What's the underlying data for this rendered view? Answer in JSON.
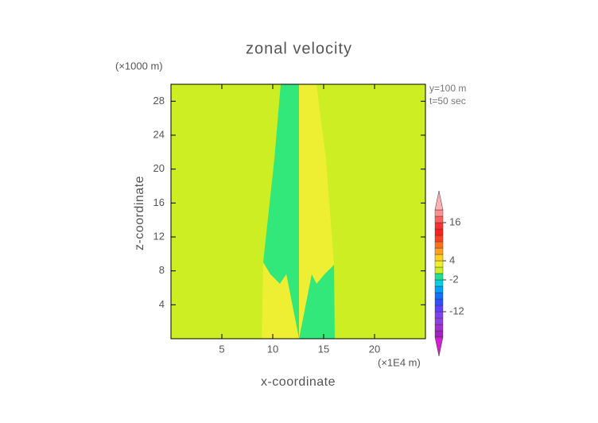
{
  "chart_data": {
    "type": "contour",
    "title": "zonal velocity",
    "x_label": "x-coordinate",
    "y_label": "z-coordinate",
    "x_unit": "(×1E4 m)",
    "y_unit": "(×1000 m)",
    "annotations": [
      "y=100 m",
      "t=50 sec"
    ],
    "xlim": [
      0,
      25
    ],
    "ylim": [
      0,
      30
    ],
    "xticks": [
      5,
      10,
      15,
      20
    ],
    "yticks": [
      4,
      8,
      12,
      16,
      20,
      24,
      28
    ],
    "background_color": "#ccee22",
    "regions": [
      {
        "color": "#33e87a",
        "x": [
          10.78,
          12.58,
          12.58,
          11.33,
          10.7,
          9.77,
          9.06,
          10.16
        ],
        "y": [
          30,
          30,
          0,
          7.59,
          6.47,
          7.59,
          9.0,
          21.19
        ]
      },
      {
        "color": "#eeee33",
        "x": [
          12.58,
          14.3,
          15.23,
          16.02,
          15.08,
          14.3,
          13.83,
          12.58
        ],
        "y": [
          30,
          30,
          21.19,
          8.72,
          7.59,
          6.47,
          7.59,
          0
        ]
      },
      {
        "color": "#eeee33",
        "x": [
          8.91,
          9.06,
          9.77,
          10.7,
          11.33,
          12.58
        ],
        "y": [
          0,
          9.0,
          7.59,
          6.47,
          7.59,
          0
        ]
      },
      {
        "color": "#33e87a",
        "x": [
          12.58,
          13.83,
          14.3,
          15.08,
          16.02,
          16.09
        ],
        "y": [
          0,
          7.59,
          6.47,
          7.59,
          8.72,
          0
        ]
      }
    ],
    "colorbar": {
      "levels": [
        -20,
        -18,
        -16,
        -14,
        -12,
        -10,
        -8,
        -6,
        -4,
        -2,
        0,
        2,
        4,
        6,
        8,
        10,
        12,
        14,
        16,
        18,
        20
      ],
      "colors": [
        "#a020c0",
        "#a030d0",
        "#9040e0",
        "#8040f0",
        "#6040ff",
        "#3050ff",
        "#1070ff",
        "#00a0ff",
        "#00d0e0",
        "#20e090",
        "#ccee22",
        "#eeee30",
        "#ffd020",
        "#ffa020",
        "#ff7020",
        "#ff4020",
        "#ff2020",
        "#ff3030",
        "#ff6060",
        "#ff9090"
      ],
      "under_color": "#d020d0",
      "over_color": "#ffb0b0",
      "ticks": [
        16,
        4,
        -2,
        -12
      ]
    }
  }
}
